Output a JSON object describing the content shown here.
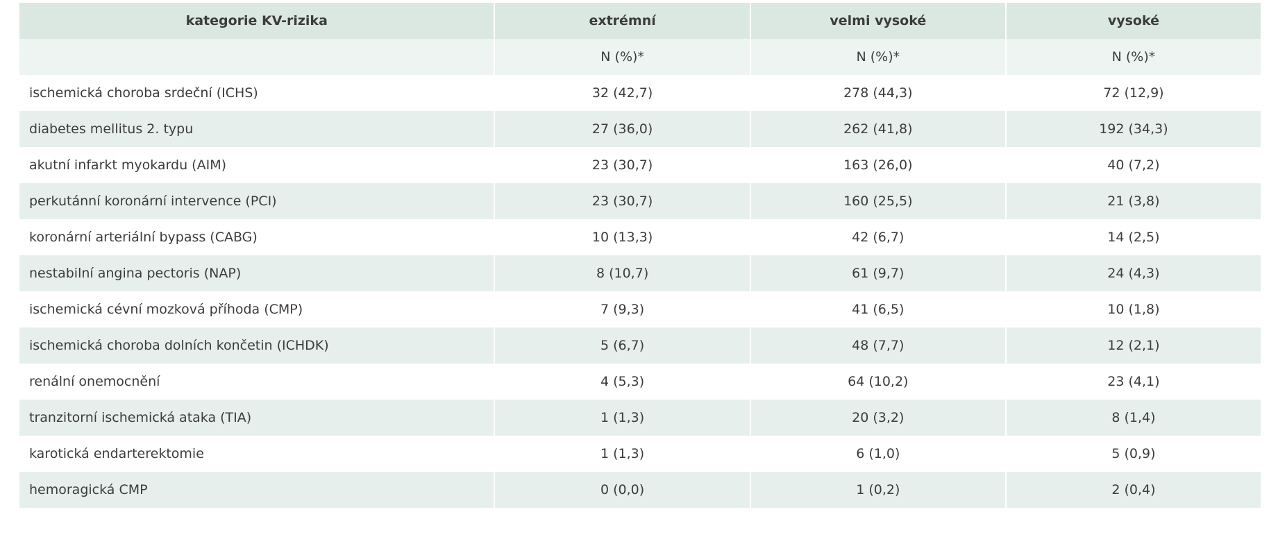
{
  "table": {
    "header": [
      "kategorie KV-rizika",
      "extrémní",
      "velmi vysoké",
      "vysoké"
    ],
    "subheader": [
      "",
      "N (%)*",
      "N (%)*",
      "N (%)*"
    ],
    "rows": [
      [
        "ischemická choroba srdeční (ICHS)",
        "32 (42,7)",
        "278 (44,3)",
        "72 (12,9)"
      ],
      [
        "diabetes mellitus 2. typu",
        "27 (36,0)",
        "262 (41,8)",
        "192 (34,3)"
      ],
      [
        "akutní infarkt myokardu (AIM)",
        "23 (30,7)",
        "163 (26,0)",
        "40 (7,2)"
      ],
      [
        "perkutánní koronární intervence (PCI)",
        "23 (30,7)",
        "160 (25,5)",
        "21 (3,8)"
      ],
      [
        "koronární arteriální bypass (CABG)",
        "10 (13,3)",
        "42 (6,7)",
        "14 (2,5)"
      ],
      [
        "nestabilní angina pectoris (NAP)",
        "8 (10,7)",
        "61 (9,7)",
        "24 (4,3)"
      ],
      [
        "ischemická cévní mozková příhoda (CMP)",
        "7 (9,3)",
        "41 (6,5)",
        "10 (1,8)"
      ],
      [
        "ischemická choroba dolních končetin (ICHDK)",
        "5 (6,7)",
        "48 (7,7)",
        "12 (2,1)"
      ],
      [
        "renální onemocnění",
        "4 (5,3)",
        "64 (10,2)",
        "23 (4,1)"
      ],
      [
        "tranzitorní ischemická ataka (TIA)",
        "1 (1,3)",
        "20 (3,2)",
        "8 (1,4)"
      ],
      [
        "karotická endarterektomie",
        "1 (1,3)",
        "6 (1,0)",
        "5 (0,9)"
      ],
      [
        "hemoragická CMP",
        "0 (0,0)",
        "1 (0,2)",
        "2 (0,4)"
      ]
    ]
  }
}
